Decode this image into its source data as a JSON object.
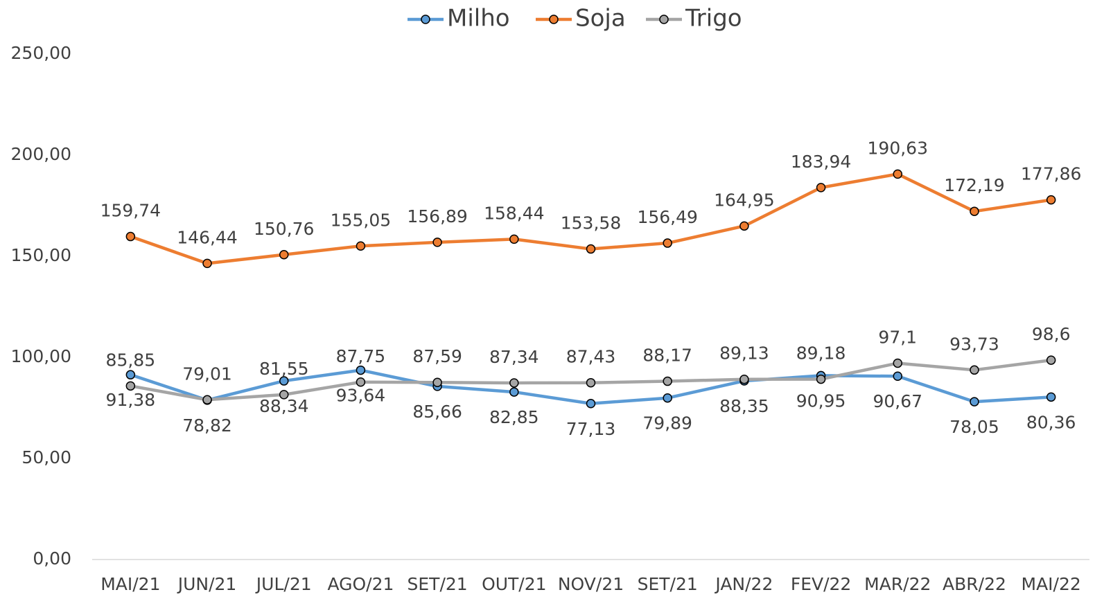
{
  "chart_data": {
    "type": "line",
    "categories": [
      "MAI/21",
      "JUN/21",
      "JUL/21",
      "AGO/21",
      "SET/21",
      "OUT/21",
      "NOV/21",
      "SET/21",
      "JAN/22",
      "FEV/22",
      "MAR/22",
      "ABR/22",
      "MAI/22"
    ],
    "series": [
      {
        "name": "Milho",
        "color": "#5b9bd5",
        "values": [
          91.38,
          78.82,
          88.34,
          93.64,
          85.66,
          82.85,
          77.13,
          79.89,
          88.35,
          90.95,
          90.67,
          78.05,
          80.36
        ],
        "value_labels": [
          "91,38",
          "78,82",
          "88,34",
          "93,64",
          "85,66",
          "82,85",
          "77,13",
          "79,89",
          "88,35",
          "90,95",
          "90,67",
          "78,05",
          "80,36"
        ]
      },
      {
        "name": "Soja",
        "color": "#ed7d31",
        "values": [
          159.74,
          146.44,
          150.76,
          155.05,
          156.89,
          158.44,
          153.58,
          156.49,
          164.95,
          183.94,
          190.63,
          172.19,
          177.86
        ],
        "value_labels": [
          "159,74",
          "146,44",
          "150,76",
          "155,05",
          "156,89",
          "158,44",
          "153,58",
          "156,49",
          "164,95",
          "183,94",
          "190,63",
          "172,19",
          "177,86"
        ]
      },
      {
        "name": "Trigo",
        "color": "#a5a5a5",
        "values": [
          85.85,
          79.01,
          81.55,
          87.75,
          87.59,
          87.34,
          87.43,
          88.17,
          89.13,
          89.18,
          97.1,
          93.73,
          98.6
        ],
        "value_labels": [
          "85,85",
          "79,01",
          "81,55",
          "87,75",
          "87,59",
          "87,34",
          "87,43",
          "88,17",
          "89,13",
          "89,18",
          "97,1",
          "93,73",
          "98,6"
        ]
      }
    ],
    "ylim": [
      0,
      250
    ],
    "yticks": [
      {
        "value": 0,
        "label": "0,00"
      },
      {
        "value": 50,
        "label": "50,00"
      },
      {
        "value": 100,
        "label": "100,00"
      },
      {
        "value": 150,
        "label": "150,00"
      },
      {
        "value": 200,
        "label": "200,00"
      },
      {
        "value": 250,
        "label": "250,00"
      }
    ],
    "legend": "top"
  }
}
